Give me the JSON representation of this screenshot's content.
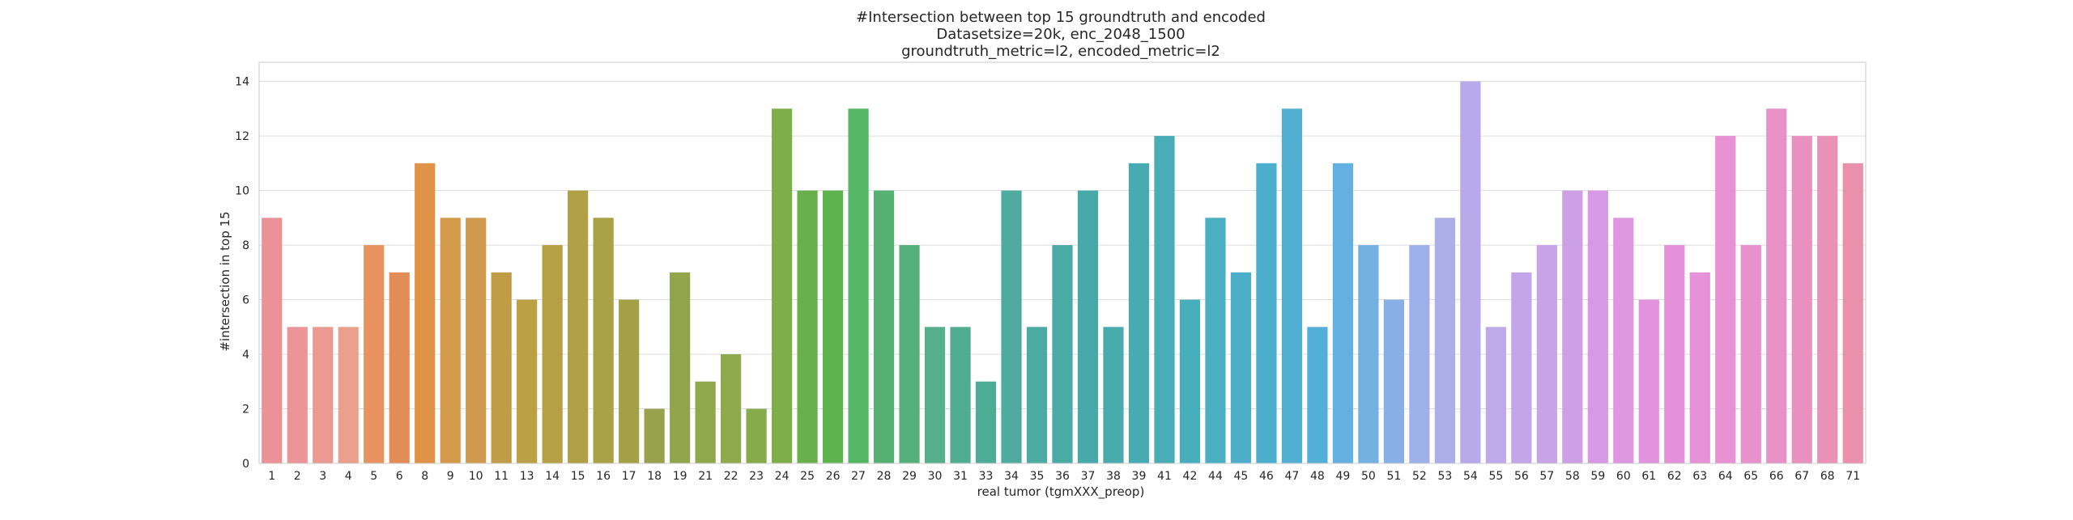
{
  "chart_data": {
    "type": "bar",
    "title_lines": [
      "#Intersection between top 15 groundtruth and encoded",
      "Datasetsize=20k, enc_2048_1500",
      "groundtruth_metric=l2, encoded_metric=l2"
    ],
    "xlabel": "real tumor (tgmXXX_preop)",
    "ylabel": "#intersection in top 15",
    "ylim": [
      0,
      14.7
    ],
    "yticks": [
      0,
      2,
      4,
      6,
      8,
      10,
      12,
      14
    ],
    "grid": true,
    "categories": [
      "1",
      "2",
      "3",
      "4",
      "5",
      "6",
      "8",
      "9",
      "10",
      "11",
      "13",
      "14",
      "15",
      "16",
      "17",
      "18",
      "19",
      "21",
      "22",
      "23",
      "24",
      "25",
      "26",
      "27",
      "28",
      "29",
      "30",
      "31",
      "33",
      "34",
      "35",
      "36",
      "37",
      "38",
      "39",
      "41",
      "42",
      "44",
      "45",
      "46",
      "47",
      "48",
      "49",
      "50",
      "51",
      "52",
      "53",
      "54",
      "55",
      "56",
      "57",
      "58",
      "59",
      "60",
      "61",
      "62",
      "63",
      "64",
      "65",
      "66",
      "67",
      "68",
      "71"
    ],
    "values": [
      9,
      5,
      5,
      5,
      8,
      7,
      11,
      9,
      9,
      7,
      6,
      8,
      10,
      9,
      6,
      2,
      7,
      3,
      4,
      2,
      13,
      10,
      10,
      13,
      10,
      8,
      5,
      5,
      3,
      10,
      5,
      8,
      10,
      5,
      11,
      12,
      6,
      9,
      7,
      11,
      13,
      5,
      11,
      8,
      6,
      8,
      9,
      14,
      5,
      7,
      8,
      10,
      10,
      9,
      6,
      8,
      7,
      12,
      8,
      13,
      12,
      12,
      11
    ],
    "colors": [
      "#eb9297",
      "#eb9598",
      "#eb9a92",
      "#eba08d",
      "#e8935f",
      "#e38d56",
      "#e09246",
      "#d49a4c",
      "#cf9a4e",
      "#c19b45",
      "#bba045",
      "#b5a045",
      "#b1a045",
      "#aaa045",
      "#a3a045",
      "#98a14b",
      "#93a54c",
      "#8fa84c",
      "#8eaa4c",
      "#86ab4b",
      "#7eae4a",
      "#69b04d",
      "#5fb34e",
      "#55b666",
      "#56b072",
      "#55b07a",
      "#55af8d",
      "#51ad90",
      "#4cac94",
      "#4fab9d",
      "#4baaa1",
      "#49aaa6",
      "#47aaa8",
      "#48abad",
      "#46acb2",
      "#48adb7",
      "#47aebc",
      "#4aafc2",
      "#4daec9",
      "#4caecd",
      "#51aed3",
      "#54afd8",
      "#64b0e0",
      "#74b1e2",
      "#89b0e6",
      "#9eb0e8",
      "#acaee9",
      "#b8aaea",
      "#bea9e9",
      "#c3a6e8",
      "#c8a3e6",
      "#cd9fe5",
      "#d799e6",
      "#df96e1",
      "#e392dd",
      "#e591da",
      "#e792d8",
      "#e891d3",
      "#e891cd",
      "#e891c6",
      "#e891bf",
      "#e991b6",
      "#e991ac"
    ]
  }
}
